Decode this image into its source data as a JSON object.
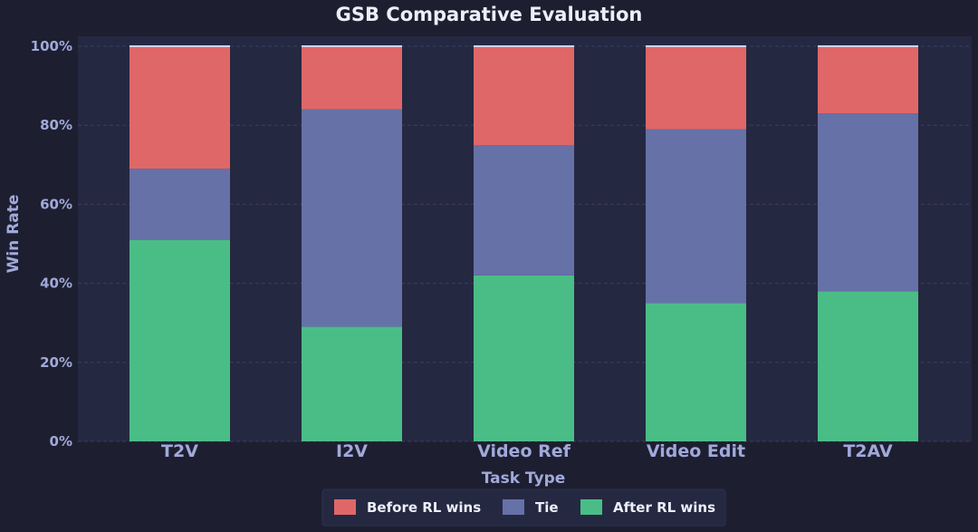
{
  "chart_data": {
    "type": "bar",
    "stacked": true,
    "title": "GSB Comparative Evaluation",
    "xlabel": "Task Type",
    "ylabel": "Win Rate",
    "categories": [
      "T2V",
      "I2V",
      "Video Ref",
      "Video Edit",
      "T2AV"
    ],
    "series": [
      {
        "name": "After RL wins",
        "color": "#4abd87",
        "values": [
          51,
          29,
          42,
          35,
          38
        ]
      },
      {
        "name": "Tie",
        "color": "#6671a8",
        "values": [
          18,
          55,
          33,
          44,
          45
        ]
      },
      {
        "name": "Before RL wins",
        "color": "#e06767",
        "values": [
          31,
          16,
          25,
          21,
          17
        ]
      }
    ],
    "legend_order": [
      "Before RL wins",
      "Tie",
      "After RL wins"
    ],
    "ylim": [
      0,
      100
    ],
    "yticks": [
      0,
      20,
      40,
      60,
      80,
      100
    ],
    "ytick_labels": [
      "0%",
      "20%",
      "40%",
      "60%",
      "80%",
      "100%"
    ],
    "grid": true,
    "legend_position": "bottom-center"
  },
  "colors": {
    "background": "#1d1f30",
    "plot_background": "#252841",
    "grid": "#3a3e5c",
    "top_cap": "#cfd3ea",
    "legend_background": "#252841"
  }
}
